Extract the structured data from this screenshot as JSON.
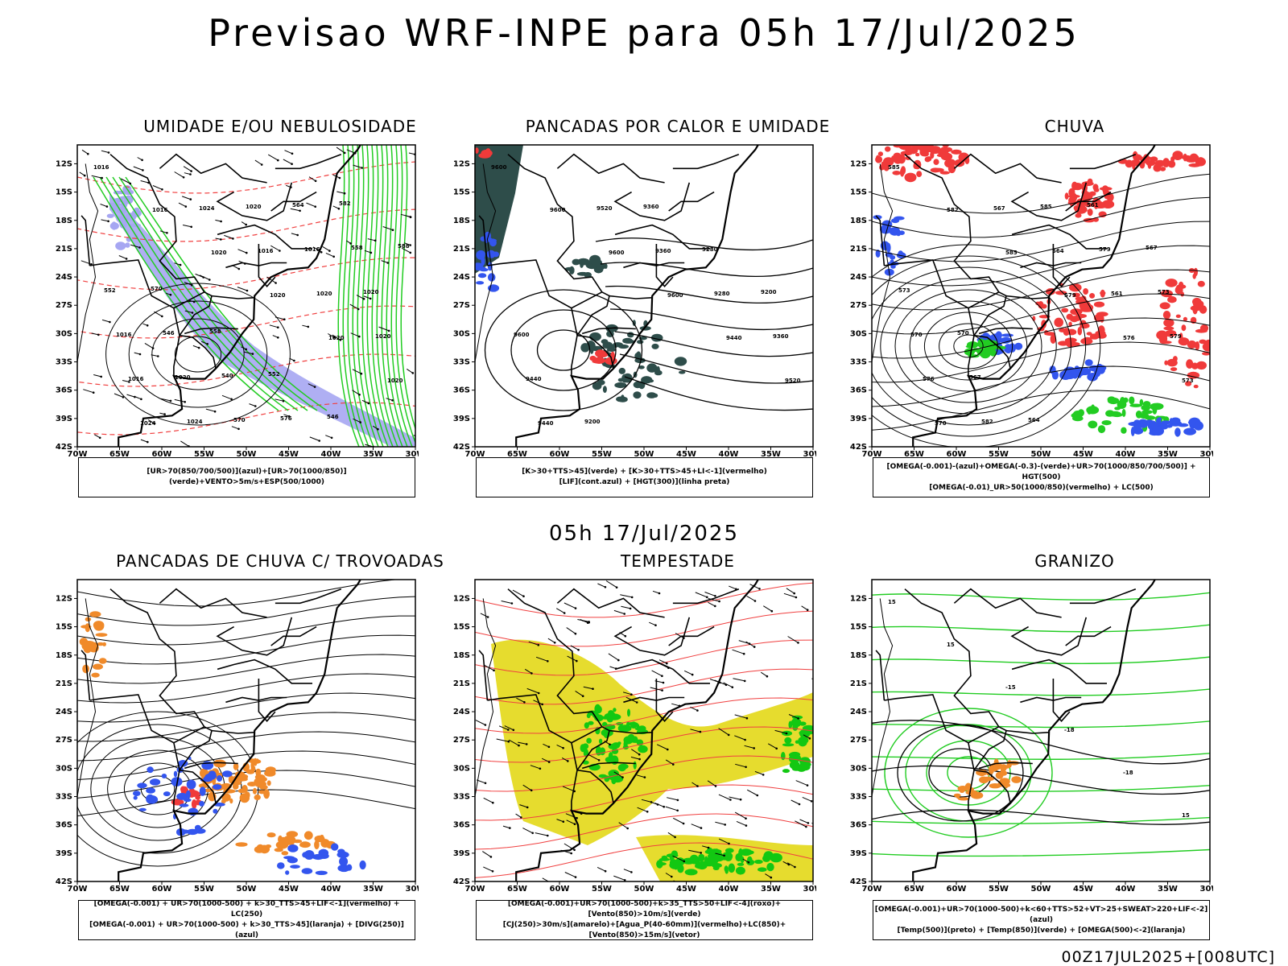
{
  "main_title": "Previsao WRF-INPE  para 05h 17/Jul/2025",
  "sub_title": "05h 17/Jul/2025",
  "footer": "00Z17JUL2025+[008UTC]",
  "axes": {
    "lat_labels": [
      "12S",
      "15S",
      "18S",
      "21S",
      "24S",
      "27S",
      "30S",
      "33S",
      "36S",
      "39S",
      "42S"
    ],
    "lon_labels": [
      "70W",
      "65W",
      "60W",
      "55W",
      "50W",
      "45W",
      "40W",
      "35W",
      "30W"
    ]
  },
  "panels": [
    {
      "title": "UMIDADE E/OU NEBULOSIDADE",
      "legend": [
        "[UR>70(850/700/500)](azul)+[UR>70(1000/850)](verde)+VENTO>5m/s+ESP(500/1000)"
      ]
    },
    {
      "title": "PANCADAS POR CALOR E UMIDADE",
      "legend": [
        "[K>30+TTS>45](verde) + [K>30+TTS>45+LI<-1](vermelho)",
        "[LIF](cont.azul) + [HGT(300)](linha preta)"
      ]
    },
    {
      "title": "CHUVA",
      "legend": [
        "[OMEGA(-0.001)-(azul)+OMEGA(-0.3)-(verde)+UR>70(1000/850/700/500)] + HGT(500)",
        "[OMEGA(-0.01)_UR>50(1000/850)(vermelho) + LC(500)"
      ]
    },
    {
      "title": "PANCADAS DE CHUVA C/ TROVOADAS",
      "legend": [
        "[OMEGA(-0.001) + UR>70(1000-500) + k>30_TTS>45+LIF<-1](vermelho) + LC(250)",
        "[OMEGA(-0.001) + UR>70(1000-500) + k>30_TTS>45](laranja) + [DIVG(250)](azul)"
      ]
    },
    {
      "title": "TEMPESTADE",
      "legend": [
        "[OMEGA(-0.001)+UR>70(1000-500)+k>35_TTS>50+LIF<-4](roxo)+[Vento(850)>10m/s](verde)",
        "[CJ(250)>30m/s](amarelo)+[Agua_P(40-60mm)](vermelho)+LC(850)+[Vento(850)>15m/s](vetor)"
      ]
    },
    {
      "title": "GRANIZO",
      "legend": [
        "[OMEGA(-0.001)+UR>70(1000-500)+k<60+TTS>52+VT>25+SWEAT>220+LIF<-2](azul)",
        "[Temp(500)](preto) + [Temp(850)](verde) + [OMEGA(500)<-2](laranja)"
      ]
    }
  ],
  "contour_labels": {
    "p1": [
      "1016",
      "1016",
      "1020",
      "1020",
      "1020",
      "1020",
      "1024",
      "1024",
      "1016",
      "1020",
      "1020",
      "1016",
      "1024",
      "1020",
      "1016",
      "1020",
      "1016",
      "1020",
      "570",
      "564",
      "558",
      "552",
      "546",
      "540",
      "576",
      "582",
      "588",
      "570",
      "558",
      "552",
      "546"
    ],
    "p2": [
      "9600",
      "9600",
      "9600",
      "9600",
      "9440",
      "9520",
      "9440",
      "9520",
      "9360",
      "9280",
      "9360",
      "9440",
      "9200",
      "9360",
      "9280",
      "9200",
      "9600"
    ],
    "p3": [
      "585",
      "582",
      "585",
      "579",
      "576",
      "573",
      "570",
      "567",
      "564",
      "561",
      "579",
      "576",
      "582",
      "585",
      "579",
      "573",
      "570",
      "567",
      "564",
      "561",
      "567",
      "573",
      "570"
    ],
    "p6": [
      "15",
      "15",
      "-15",
      "-18",
      "-18",
      "15"
    ]
  },
  "colors": {
    "blue_field": "#3355ee",
    "light_blue_field": "#a6a6f2",
    "green_field": "#22cc22",
    "red_field": "#f03a3a",
    "dark_teal_field": "#2e4d4a",
    "orange_field": "#f08a2a",
    "yellow_field": "#e6dc2e",
    "bright_green_field": "#12c812",
    "red_contour": "#f04040"
  }
}
